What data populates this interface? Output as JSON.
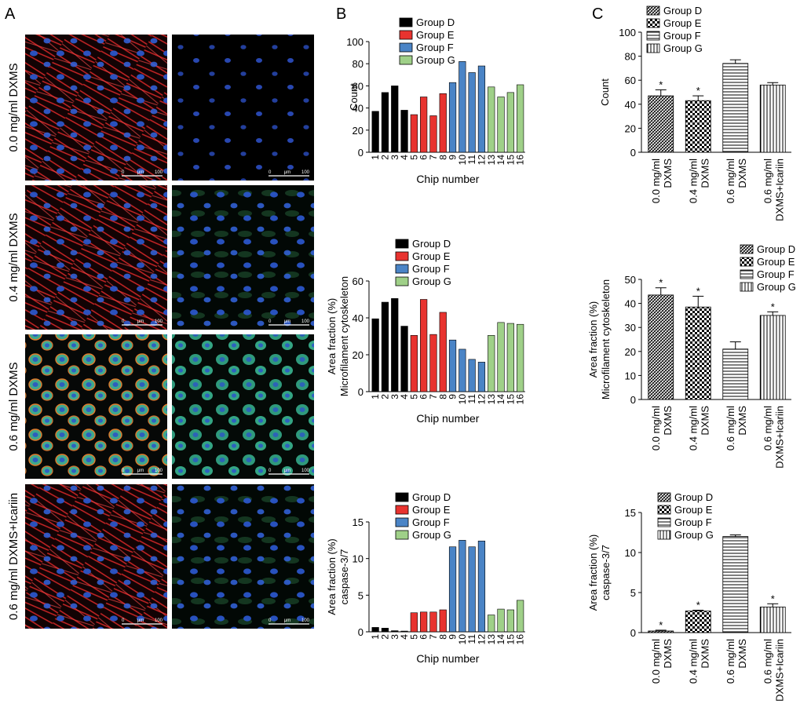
{
  "panel_letters": [
    "A",
    "B",
    "C"
  ],
  "micrographs": {
    "rows": [
      {
        "label": "0.0 mg/ml DXMS",
        "kind": "f"
      },
      {
        "label": "0.4 mg/ml DXMS",
        "kind": "f"
      },
      {
        "label": "0.6 mg/ml DXMS",
        "kind": "r"
      },
      {
        "label": "0.6 mg/ml DXMS+Icariin",
        "kind": "f"
      }
    ],
    "scale_text": [
      "0",
      "μm",
      "100"
    ]
  },
  "legend_groups": [
    "Group D",
    "Group E",
    "Group F",
    "Group G"
  ],
  "colors": {
    "group_d": "#000000",
    "group_e": "#e8332f",
    "group_f": "#4a84c6",
    "group_g": "#9fd088"
  },
  "conditions": [
    "0.0 mg/ml\nDXMS",
    "0.4 mg/ml\nDXMS",
    "0.6 mg/ml\nDXMS",
    "0.6 mg/ml\nDXMS+Icariin"
  ],
  "chart_data": [
    {
      "type": "bar",
      "panel": "B",
      "xlabel": "Chip number",
      "ylabel": [
        "Count"
      ],
      "categories": [
        "1",
        "2",
        "3",
        "4",
        "5",
        "6",
        "7",
        "8",
        "9",
        "10",
        "11",
        "12",
        "13",
        "14",
        "15",
        "16"
      ],
      "ylim": [
        0,
        100
      ],
      "yticks": [
        0,
        20,
        40,
        60,
        80,
        100
      ],
      "group_of": [
        0,
        0,
        0,
        0,
        1,
        1,
        1,
        1,
        2,
        2,
        2,
        2,
        3,
        3,
        3,
        3
      ],
      "series": [
        {
          "name": "Count",
          "values": [
            37,
            54,
            60,
            38,
            34,
            50,
            33,
            53,
            63,
            82,
            72,
            78,
            59,
            50,
            54,
            61
          ]
        }
      ]
    },
    {
      "type": "bar",
      "panel": "B",
      "xlabel": "Chip number",
      "ylabel": [
        "Area fraction (%)",
        "Microfilament cytoskeleton"
      ],
      "categories": [
        "1",
        "2",
        "3",
        "4",
        "5",
        "6",
        "7",
        "8",
        "9",
        "10",
        "11",
        "12",
        "13",
        "14",
        "15",
        "16"
      ],
      "ylim": [
        0,
        60
      ],
      "yticks": [
        0,
        20,
        40,
        60
      ],
      "group_of": [
        0,
        0,
        0,
        0,
        1,
        1,
        1,
        1,
        2,
        2,
        2,
        2,
        3,
        3,
        3,
        3
      ],
      "series": [
        {
          "name": "Microfilament cytoskeleton",
          "values": [
            39.5,
            48.5,
            50.5,
            35.5,
            30.5,
            50,
            31,
            43,
            28,
            23,
            17.5,
            16,
            30.5,
            37.5,
            37,
            36.5
          ]
        }
      ]
    },
    {
      "type": "bar",
      "panel": "B",
      "xlabel": "Chip number",
      "ylabel": [
        "Area fraction (%)",
        "caspase-3/7"
      ],
      "categories": [
        "1",
        "2",
        "3",
        "4",
        "5",
        "6",
        "7",
        "8",
        "9",
        "10",
        "11",
        "12",
        "13",
        "14",
        "15",
        "16"
      ],
      "ylim": [
        0,
        15
      ],
      "yticks": [
        0,
        5,
        10,
        15
      ],
      "group_of": [
        0,
        0,
        0,
        0,
        1,
        1,
        1,
        1,
        2,
        2,
        2,
        2,
        3,
        3,
        3,
        3
      ],
      "series": [
        {
          "name": "caspase-3/7",
          "values": [
            0.6,
            0.5,
            0.15,
            0.1,
            2.6,
            2.7,
            2.7,
            3.0,
            11.6,
            12.5,
            11.6,
            12.4,
            2.3,
            3.1,
            3.0,
            4.3
          ]
        }
      ]
    },
    {
      "type": "bar",
      "panel": "C",
      "xlabel": "",
      "ylabel": [
        "Count"
      ],
      "categories": [
        "0.0 mg/ml DXMS",
        "0.4 mg/ml DXMS",
        "0.6 mg/ml DXMS",
        "0.6 mg/ml DXMS+Icariin"
      ],
      "ylim": [
        0,
        100
      ],
      "yticks": [
        0,
        20,
        40,
        60,
        80,
        100
      ],
      "values": [
        47,
        43,
        74,
        56
      ],
      "errors": [
        5,
        4,
        3,
        2
      ],
      "significance": [
        "*",
        "*",
        "",
        ""
      ]
    },
    {
      "type": "bar",
      "panel": "C",
      "xlabel": "",
      "ylabel": [
        "Area fraction (%)",
        "Microfilament cytoskeleton"
      ],
      "categories": [
        "0.0 mg/ml DXMS",
        "0.4 mg/ml DXMS",
        "0.6 mg/ml DXMS",
        "0.6 mg/ml DXMS+Icariin"
      ],
      "ylim": [
        0,
        50
      ],
      "yticks": [
        0,
        10,
        20,
        30,
        40,
        50
      ],
      "values": [
        43.5,
        38.5,
        21,
        35
      ],
      "errors": [
        3,
        4.5,
        3,
        1.5
      ],
      "significance": [
        "*",
        "*",
        "",
        "*"
      ]
    },
    {
      "type": "bar",
      "panel": "C",
      "xlabel": "",
      "ylabel": [
        "Area fraction (%)",
        "caspase-3/7"
      ],
      "categories": [
        "0.0 mg/ml DXMS",
        "0.4 mg/ml DXMS",
        "0.6 mg/ml DXMS",
        "0.6 mg/ml DXMS+Icariin"
      ],
      "ylim": [
        0,
        15
      ],
      "yticks": [
        0,
        5,
        10,
        15
      ],
      "values": [
        0.2,
        2.7,
        12.0,
        3.2
      ],
      "errors": [
        0.1,
        0.1,
        0.2,
        0.4
      ],
      "significance": [
        "*",
        "*",
        "",
        "*"
      ]
    }
  ]
}
